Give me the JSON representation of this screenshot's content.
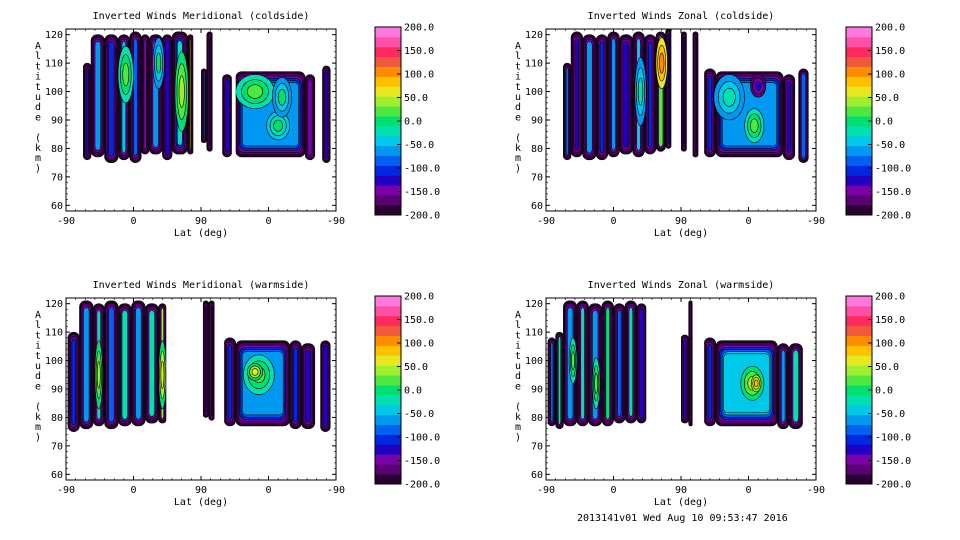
{
  "footer": "2013141v01 Wed Aug 10 09:53:47 2016",
  "palette": [
    "#2a0030",
    "#5a0070",
    "#7a00a8",
    "#2200c0",
    "#0028e0",
    "#0060f0",
    "#0098f0",
    "#00c8e8",
    "#00e0b0",
    "#00e070",
    "#50e840",
    "#a0ee30",
    "#e8e820",
    "#ffc000",
    "#ff8c00",
    "#f05a3a",
    "#ff2a60",
    "#ff50a8",
    "#ff78e0"
  ],
  "chart_data": [
    {
      "type": "heatmap",
      "title": "Inverted Winds Meridional (coldside)",
      "xlabel": "Lat (deg)",
      "ylabel": "Altitude (km)",
      "xticks": [
        "-90",
        "0",
        "90",
        "0",
        "-90"
      ],
      "yticks": [
        "60",
        "70",
        "80",
        "90",
        "100",
        "110",
        "120"
      ],
      "ylim": [
        58,
        122
      ],
      "colorbar": {
        "min": -200,
        "max": 200,
        "ticks": [
          "200.0",
          "150.0",
          "100.0",
          "50.0",
          "0.0",
          "-50.0",
          "-100.0",
          "-150.0",
          "-200.0"
        ]
      },
      "columns": [
        {
          "x0": 0.09,
          "x1": 0.13,
          "z0": 76,
          "z1": 110,
          "v": -120
        },
        {
          "x0": 0.13,
          "x1": 0.2,
          "z0": 77,
          "z1": 120,
          "v": -60
        },
        {
          "x0": 0.2,
          "x1": 0.27,
          "z0": 75,
          "z1": 120,
          "v": -110
        },
        {
          "x0": 0.27,
          "x1": 0.33,
          "z0": 76,
          "z1": 120,
          "v": -40
        },
        {
          "x0": 0.33,
          "x1": 0.39,
          "z0": 75,
          "z1": 121,
          "v": -90
        },
        {
          "x0": 0.39,
          "x1": 0.43,
          "z0": 78,
          "z1": 120,
          "v": -150
        },
        {
          "x0": 0.43,
          "x1": 0.5,
          "z0": 78,
          "z1": 120,
          "v": -70
        },
        {
          "x0": 0.5,
          "x1": 0.55,
          "z0": 76,
          "z1": 120,
          "v": -130
        },
        {
          "x0": 0.55,
          "x1": 0.63,
          "z0": 78,
          "z1": 121,
          "v": -20
        },
        {
          "x0": 0.63,
          "x1": 0.66,
          "z0": 78,
          "z1": 120,
          "v": 60
        },
        {
          "x0": 0.7,
          "x1": 0.73,
          "z0": 82,
          "z1": 108,
          "v": -60
        },
        {
          "x0": 0.73,
          "x1": 0.76,
          "z0": 79,
          "z1": 121,
          "v": -150
        },
        {
          "x0": 0.81,
          "x1": 0.86,
          "z0": 77,
          "z1": 106,
          "v": -120
        },
        {
          "x0": 0.88,
          "x1": 1.24,
          "z0": 77,
          "z1": 107,
          "v": -60
        },
        {
          "x0": 1.24,
          "x1": 1.29,
          "z0": 76,
          "z1": 106,
          "v": -140
        },
        {
          "x0": 1.33,
          "x1": 1.37,
          "z0": 75,
          "z1": 109,
          "v": -120
        }
      ],
      "blobs": [
        {
          "x": 0.31,
          "z": 106,
          "rx": 0.04,
          "rz": 10,
          "v": 30
        },
        {
          "x": 0.48,
          "z": 110,
          "rx": 0.03,
          "rz": 9,
          "v": -10
        },
        {
          "x": 0.6,
          "z": 100,
          "rx": 0.035,
          "rz": 14,
          "v": 40
        },
        {
          "x": 0.98,
          "z": 100,
          "rx": 0.1,
          "rz": 6,
          "v": 20
        },
        {
          "x": 1.1,
          "z": 88,
          "rx": 0.06,
          "rz": 5,
          "v": 10
        },
        {
          "x": 1.12,
          "z": 98,
          "rx": 0.05,
          "rz": 7,
          "v": -10
        }
      ],
      "gaps": [
        {
          "x0": 0.66,
          "x1": 0.7
        },
        {
          "x0": 0.76,
          "x1": 0.81
        },
        {
          "x0": 0.86,
          "x1": 0.88
        }
      ]
    },
    {
      "type": "heatmap",
      "title": "Inverted Winds Zonal (coldside)",
      "xlabel": "Lat (deg)",
      "ylabel": "Altitude (km)",
      "xticks": [
        "-90",
        "0",
        "90",
        "0",
        "-90"
      ],
      "yticks": [
        "60",
        "70",
        "80",
        "90",
        "100",
        "110",
        "120"
      ],
      "ylim": [
        58,
        122
      ],
      "colorbar": {
        "min": -200,
        "max": 200,
        "ticks": [
          "200.0",
          "150.0",
          "100.0",
          "50.0",
          "0.0",
          "-50.0",
          "-100.0",
          "-150.0",
          "-200.0"
        ]
      },
      "columns": [
        {
          "x0": 0.09,
          "x1": 0.13,
          "z0": 76,
          "z1": 110,
          "v": -90
        },
        {
          "x0": 0.13,
          "x1": 0.19,
          "z0": 77,
          "z1": 121,
          "v": -130
        },
        {
          "x0": 0.19,
          "x1": 0.26,
          "z0": 76,
          "z1": 120,
          "v": -60
        },
        {
          "x0": 0.26,
          "x1": 0.32,
          "z0": 76,
          "z1": 120,
          "v": -110
        },
        {
          "x0": 0.32,
          "x1": 0.38,
          "z0": 77,
          "z1": 121,
          "v": -70
        },
        {
          "x0": 0.38,
          "x1": 0.45,
          "z0": 78,
          "z1": 120,
          "v": -120
        },
        {
          "x0": 0.45,
          "x1": 0.51,
          "z0": 77,
          "z1": 121,
          "v": -50
        },
        {
          "x0": 0.51,
          "x1": 0.57,
          "z0": 78,
          "z1": 120,
          "v": -100
        },
        {
          "x0": 0.57,
          "x1": 0.62,
          "z0": 79,
          "z1": 121,
          "v": 20
        },
        {
          "x0": 0.62,
          "x1": 0.65,
          "z0": 80,
          "z1": 122,
          "v": -130
        },
        {
          "x0": 0.7,
          "x1": 0.73,
          "z0": 79,
          "z1": 121,
          "v": -120
        },
        {
          "x0": 0.76,
          "x1": 0.79,
          "z0": 77,
          "z1": 121,
          "v": -140
        },
        {
          "x0": 0.82,
          "x1": 0.88,
          "z0": 77,
          "z1": 108,
          "v": -110
        },
        {
          "x0": 0.88,
          "x1": 1.23,
          "z0": 77,
          "z1": 107,
          "v": -60
        },
        {
          "x0": 1.23,
          "x1": 1.29,
          "z0": 76,
          "z1": 106,
          "v": -120
        },
        {
          "x0": 1.31,
          "x1": 1.36,
          "z0": 75,
          "z1": 108,
          "v": -90
        }
      ],
      "blobs": [
        {
          "x": 0.6,
          "z": 110,
          "rx": 0.03,
          "rz": 9,
          "v": 110
        },
        {
          "x": 0.49,
          "z": 100,
          "rx": 0.03,
          "rz": 12,
          "v": -20
        },
        {
          "x": 1.08,
          "z": 88,
          "rx": 0.05,
          "rz": 6,
          "v": 30
        },
        {
          "x": 0.95,
          "z": 98,
          "rx": 0.08,
          "rz": 8,
          "v": -20
        },
        {
          "x": 1.1,
          "z": 102,
          "rx": 0.04,
          "rz": 4,
          "v": -120
        }
      ],
      "gaps": [
        {
          "x0": 0.65,
          "x1": 0.7
        },
        {
          "x0": 0.73,
          "x1": 0.76
        },
        {
          "x0": 0.79,
          "x1": 0.82
        }
      ]
    },
    {
      "type": "heatmap",
      "title": "Inverted Winds Meridional (warmside)",
      "xlabel": "Lat (deg)",
      "ylabel": "Altitude (km)",
      "xticks": [
        "-90",
        "0",
        "90",
        "0",
        "-90"
      ],
      "yticks": [
        "60",
        "70",
        "80",
        "90",
        "100",
        "110",
        "120"
      ],
      "ylim": [
        58,
        122
      ],
      "colorbar": {
        "min": -200,
        "max": 200,
        "ticks": [
          "200.0",
          "150.0",
          "100.0",
          "50.0",
          "0.0",
          "-50.0",
          "-100.0",
          "-150.0",
          "-200.0"
        ]
      },
      "columns": [
        {
          "x0": 0.01,
          "x1": 0.07,
          "z0": 75,
          "z1": 110,
          "v": -110
        },
        {
          "x0": 0.07,
          "x1": 0.14,
          "z0": 76,
          "z1": 121,
          "v": -60
        },
        {
          "x0": 0.14,
          "x1": 0.2,
          "z0": 77,
          "z1": 120,
          "v": -20
        },
        {
          "x0": 0.2,
          "x1": 0.27,
          "z0": 76,
          "z1": 121,
          "v": -80
        },
        {
          "x0": 0.27,
          "x1": 0.34,
          "z0": 77,
          "z1": 120,
          "v": -30
        },
        {
          "x0": 0.34,
          "x1": 0.41,
          "z0": 77,
          "z1": 121,
          "v": -60
        },
        {
          "x0": 0.41,
          "x1": 0.48,
          "z0": 78,
          "z1": 120,
          "v": -20
        },
        {
          "x0": 0.48,
          "x1": 0.52,
          "z0": 78,
          "z1": 120,
          "v": 40
        },
        {
          "x0": 0.71,
          "x1": 0.74,
          "z0": 80,
          "z1": 121,
          "v": -150
        },
        {
          "x0": 0.74,
          "x1": 0.77,
          "z0": 79,
          "z1": 121,
          "v": -110
        },
        {
          "x0": 0.82,
          "x1": 0.88,
          "z0": 77,
          "z1": 108,
          "v": -110
        },
        {
          "x0": 0.88,
          "x1": 1.16,
          "z0": 77,
          "z1": 107,
          "v": -60
        },
        {
          "x0": 1.16,
          "x1": 1.22,
          "z0": 76,
          "z1": 107,
          "v": -100
        },
        {
          "x0": 1.22,
          "x1": 1.29,
          "z0": 76,
          "z1": 106,
          "v": -130
        },
        {
          "x0": 1.32,
          "x1": 1.37,
          "z0": 75,
          "z1": 107,
          "v": -120
        }
      ],
      "blobs": [
        {
          "x": 0.17,
          "z": 95,
          "rx": 0.02,
          "rz": 12,
          "v": 50
        },
        {
          "x": 0.5,
          "z": 95,
          "rx": 0.02,
          "rz": 12,
          "v": 60
        },
        {
          "x": 1.0,
          "z": 95,
          "rx": 0.08,
          "rz": 7,
          "v": 30
        },
        {
          "x": 0.98,
          "z": 96,
          "rx": 0.04,
          "rz": 3,
          "v": 60
        }
      ],
      "gaps": [
        {
          "x0": 0.52,
          "x1": 0.71
        },
        {
          "x0": 0.77,
          "x1": 0.82
        }
      ]
    },
    {
      "type": "heatmap",
      "title": "Inverted Winds Zonal (warmside)",
      "xlabel": "Lat (deg)",
      "ylabel": "Altitude (km)",
      "xticks": [
        "-90",
        "0",
        "90",
        "0",
        "-90"
      ],
      "yticks": [
        "60",
        "70",
        "80",
        "90",
        "100",
        "110",
        "120"
      ],
      "ylim": [
        58,
        122
      ],
      "colorbar": {
        "min": -200,
        "max": 200,
        "ticks": [
          "200.0",
          "150.0",
          "100.0",
          "50.0",
          "0.0",
          "-50.0",
          "-100.0",
          "-150.0",
          "-200.0"
        ]
      },
      "columns": [
        {
          "x0": 0.01,
          "x1": 0.05,
          "z0": 77,
          "z1": 108,
          "v": -90
        },
        {
          "x0": 0.05,
          "x1": 0.09,
          "z0": 76,
          "z1": 110,
          "v": -30
        },
        {
          "x0": 0.09,
          "x1": 0.16,
          "z0": 77,
          "z1": 121,
          "v": -70
        },
        {
          "x0": 0.16,
          "x1": 0.22,
          "z0": 77,
          "z1": 121,
          "v": -20
        },
        {
          "x0": 0.22,
          "x1": 0.29,
          "z0": 77,
          "z1": 120,
          "v": -60
        },
        {
          "x0": 0.29,
          "x1": 0.35,
          "z0": 77,
          "z1": 121,
          "v": -10
        },
        {
          "x0": 0.35,
          "x1": 0.41,
          "z0": 78,
          "z1": 120,
          "v": -80
        },
        {
          "x0": 0.41,
          "x1": 0.47,
          "z0": 78,
          "z1": 121,
          "v": -30
        },
        {
          "x0": 0.47,
          "x1": 0.52,
          "z0": 78,
          "z1": 120,
          "v": -120
        },
        {
          "x0": 0.7,
          "x1": 0.74,
          "z0": 78,
          "z1": 109,
          "v": -130
        },
        {
          "x0": 0.74,
          "x1": 0.76,
          "z0": 77,
          "z1": 121,
          "v": -160
        },
        {
          "x0": 0.82,
          "x1": 0.88,
          "z0": 77,
          "z1": 108,
          "v": -100
        },
        {
          "x0": 0.88,
          "x1": 1.2,
          "z0": 77,
          "z1": 107,
          "v": -40
        },
        {
          "x0": 1.2,
          "x1": 1.26,
          "z0": 76,
          "z1": 106,
          "v": -70
        },
        {
          "x0": 1.26,
          "x1": 1.33,
          "z0": 76,
          "z1": 106,
          "v": -20
        }
      ],
      "blobs": [
        {
          "x": 0.14,
          "z": 100,
          "rx": 0.02,
          "rz": 8,
          "v": 30
        },
        {
          "x": 0.26,
          "z": 92,
          "rx": 0.02,
          "rz": 9,
          "v": 20
        },
        {
          "x": 1.07,
          "z": 92,
          "rx": 0.06,
          "rz": 6,
          "v": 40
        },
        {
          "x": 1.09,
          "z": 92,
          "rx": 0.025,
          "rz": 3,
          "v": 90
        }
      ],
      "gaps": [
        {
          "x0": 0.52,
          "x1": 0.7
        },
        {
          "x0": 0.76,
          "x1": 0.82
        }
      ]
    }
  ]
}
